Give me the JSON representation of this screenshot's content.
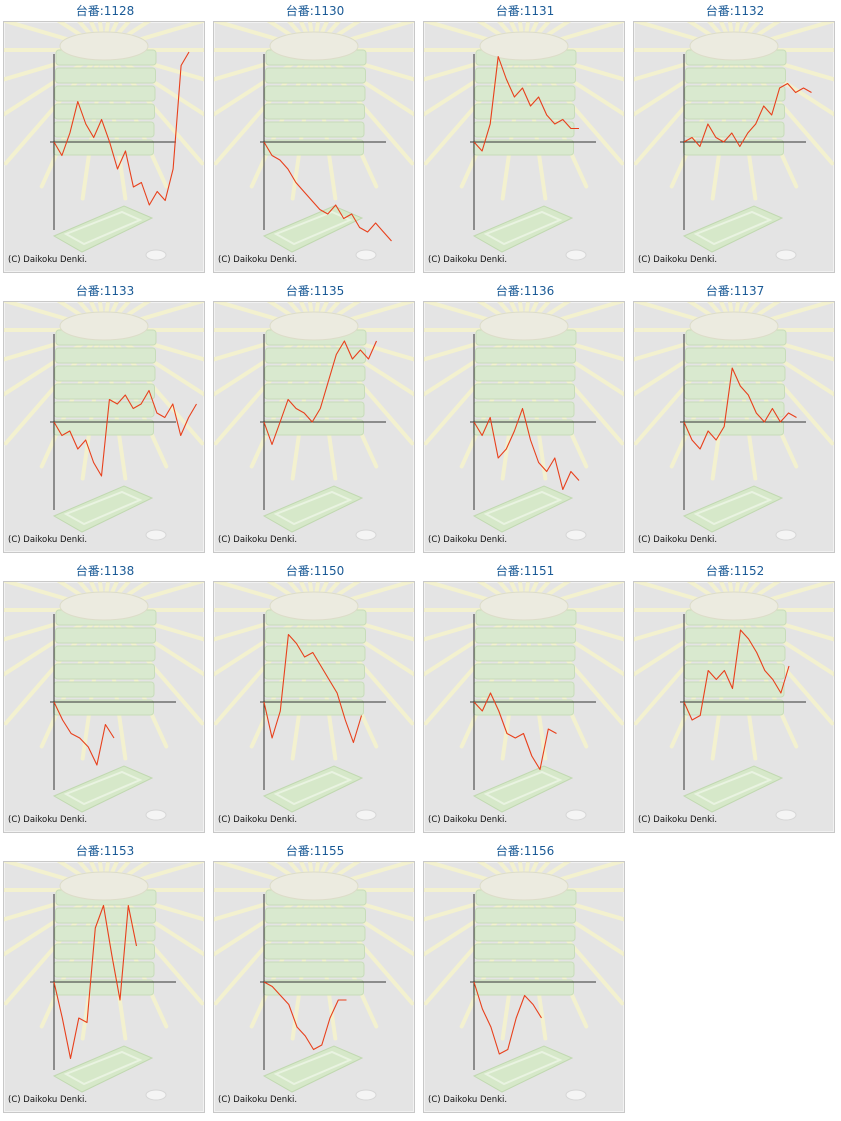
{
  "machine_prefix": "台番:",
  "copyright": "(C) Daikoku Denki.",
  "colors": {
    "line": "#e8401c",
    "axis": "#333333",
    "title": "#1a5a96",
    "background": "#e4e4e4"
  },
  "chart_data": [
    {
      "type": "line",
      "machine": "1128",
      "y": [
        0,
        -15,
        10,
        45,
        20,
        5,
        25,
        0,
        -30,
        -10,
        -50,
        -45,
        -70,
        -55,
        -65,
        -30,
        85,
        100
      ]
    },
    {
      "type": "line",
      "machine": "1130",
      "y": [
        0,
        -15,
        -20,
        -30,
        -45,
        -55,
        -65,
        -75,
        -80,
        -70,
        -85,
        -80,
        -95,
        -100,
        -90,
        -100,
        -110
      ]
    },
    {
      "type": "line",
      "machine": "1131",
      "y": [
        0,
        -10,
        20,
        95,
        70,
        50,
        60,
        40,
        50,
        30,
        20,
        25,
        15,
        15
      ]
    },
    {
      "type": "line",
      "machine": "1132",
      "y": [
        0,
        5,
        -5,
        20,
        5,
        0,
        10,
        -5,
        10,
        20,
        40,
        30,
        60,
        65,
        55,
        60,
        55
      ]
    },
    {
      "type": "line",
      "machine": "1133",
      "y": [
        0,
        -15,
        -10,
        -30,
        -20,
        -45,
        -60,
        25,
        20,
        30,
        15,
        20,
        35,
        10,
        5,
        20,
        -15,
        5,
        20
      ]
    },
    {
      "type": "line",
      "machine": "1135",
      "y": [
        0,
        -25,
        0,
        25,
        15,
        10,
        0,
        15,
        45,
        75,
        90,
        70,
        80,
        70,
        90
      ]
    },
    {
      "type": "line",
      "machine": "1136",
      "y": [
        0,
        -15,
        5,
        -40,
        -30,
        -10,
        15,
        -20,
        -45,
        -55,
        -40,
        -75,
        -55,
        -65
      ]
    },
    {
      "type": "line",
      "machine": "1137",
      "y": [
        0,
        -20,
        -30,
        -10,
        -20,
        -5,
        60,
        40,
        30,
        10,
        0,
        15,
        0,
        10,
        5
      ]
    },
    {
      "type": "line",
      "machine": "1138",
      "y": [
        0,
        -20,
        -35,
        -40,
        -50,
        -70,
        -25,
        -40
      ]
    },
    {
      "type": "line",
      "machine": "1150",
      "y": [
        0,
        -40,
        -10,
        75,
        65,
        50,
        55,
        40,
        25,
        10,
        -20,
        -45,
        -15
      ]
    },
    {
      "type": "line",
      "machine": "1151",
      "y": [
        0,
        -10,
        10,
        -10,
        -35,
        -40,
        -35,
        -60,
        -75,
        -30,
        -35
      ]
    },
    {
      "type": "line",
      "machine": "1152",
      "y": [
        0,
        -20,
        -15,
        35,
        25,
        35,
        15,
        80,
        70,
        55,
        35,
        25,
        10,
        40
      ]
    },
    {
      "type": "line",
      "machine": "1153",
      "y": [
        0,
        -40,
        -85,
        -40,
        -45,
        60,
        85,
        30,
        -20,
        85,
        40
      ]
    },
    {
      "type": "line",
      "machine": "1155",
      "y": [
        0,
        -5,
        -15,
        -25,
        -50,
        -60,
        -75,
        -70,
        -40,
        -20,
        -20
      ]
    },
    {
      "type": "line",
      "machine": "1156",
      "y": [
        0,
        -30,
        -50,
        -80,
        -75,
        -40,
        -15,
        -25,
        -40
      ]
    }
  ]
}
